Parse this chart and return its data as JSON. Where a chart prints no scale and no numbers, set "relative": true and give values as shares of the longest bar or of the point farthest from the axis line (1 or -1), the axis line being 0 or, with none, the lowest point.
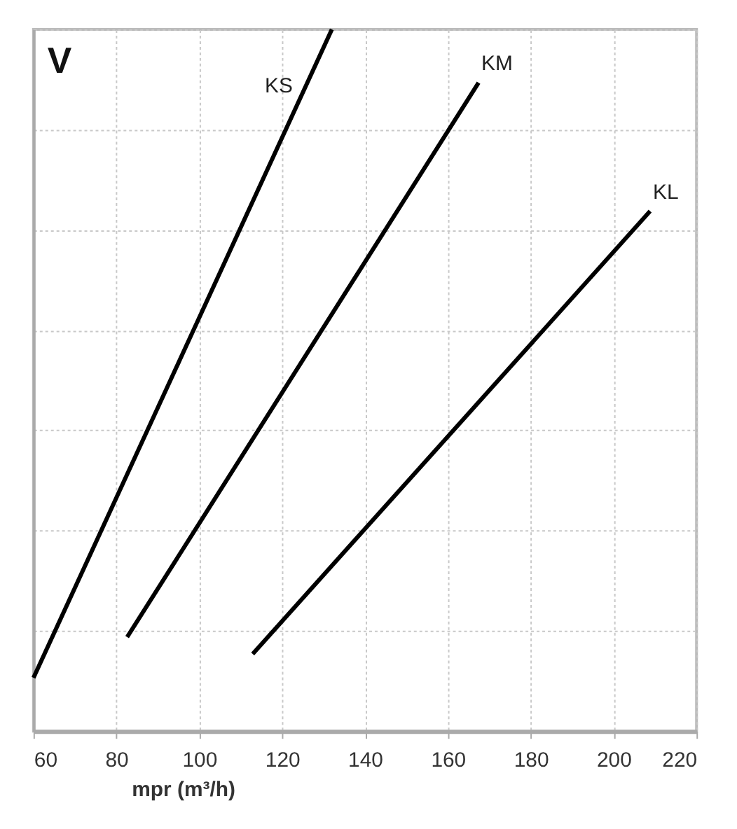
{
  "chart_data": {
    "type": "line",
    "relative": true,
    "ylabel": "V",
    "xlabel": "mpr (m³/h)",
    "xlim": [
      60,
      220
    ],
    "xticks": [
      60,
      80,
      100,
      120,
      140,
      160,
      180,
      200,
      220
    ],
    "grid": true,
    "legend": false,
    "marker": "none",
    "line_style": "solid",
    "series": [
      {
        "name": "KS",
        "color": "#000000",
        "x": [
          60,
          132
        ],
        "values": [
          0.076,
          1
        ]
      },
      {
        "name": "KM",
        "color": "#000000",
        "x": [
          82.6,
          167.4
        ],
        "values": [
          0.134,
          0.924
        ]
      },
      {
        "name": "KL",
        "color": "#000000",
        "x": [
          112.9,
          208.8
        ],
        "values": [
          0.11,
          0.741
        ]
      }
    ]
  }
}
